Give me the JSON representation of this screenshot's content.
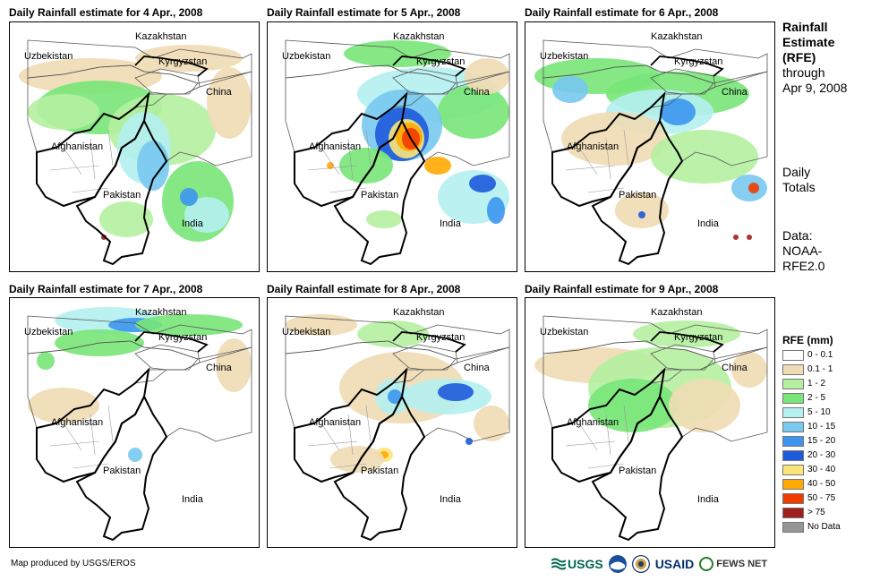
{
  "panels": [
    {
      "title": "Daily Rainfall estimate for 4 Apr., 2008"
    },
    {
      "title": "Daily Rainfall estimate for 5 Apr., 2008"
    },
    {
      "title": "Daily Rainfall estimate for 6 Apr., 2008"
    },
    {
      "title": "Daily Rainfall estimate for 7 Apr., 2008"
    },
    {
      "title": "Daily Rainfall estimate for 8 Apr., 2008"
    },
    {
      "title": "Daily Rainfall estimate for 9 Apr., 2008"
    }
  ],
  "map_labels": {
    "kazakhstan": "Kazakhstan",
    "uzbekistan": "Uzbekistan",
    "kyrgyzstan": "Kyrgyzstan",
    "china": "China",
    "afghanistan": "Afghanistan",
    "pakistan": "Pakistan",
    "india": "India"
  },
  "side": {
    "title_line1": "Rainfall",
    "title_line2": "Estimate",
    "title_line3": "(RFE)",
    "through": "through",
    "date": "Apr 9, 2008",
    "daily1": "Daily",
    "daily2": "Totals",
    "data1": "Data:",
    "data2": "NOAA-",
    "data3": "RFE2.0"
  },
  "legend": {
    "title": "RFE (mm)",
    "items": [
      {
        "label": "0 - 0.1",
        "color": "#ffffff"
      },
      {
        "label": "0.1 - 1",
        "color": "#f0dcb4"
      },
      {
        "label": "1 - 2",
        "color": "#b4f0a0"
      },
      {
        "label": "2 - 5",
        "color": "#78e678"
      },
      {
        "label": "5 - 10",
        "color": "#b4f0f0"
      },
      {
        "label": "10 - 15",
        "color": "#78c8f0"
      },
      {
        "label": "15 - 20",
        "color": "#3c96f0"
      },
      {
        "label": "20 - 30",
        "color": "#1e5adc"
      },
      {
        "label": "30 - 40",
        "color": "#fae678"
      },
      {
        "label": "40 - 50",
        "color": "#ffaa00"
      },
      {
        "label": "50 - 75",
        "color": "#f03c00"
      },
      {
        "label": "> 75",
        "color": "#a01e1e"
      },
      {
        "label": "No Data",
        "color": "#969696"
      }
    ]
  },
  "credit": "Map produced by USGS/EROS",
  "logos": {
    "usgs": "USGS",
    "usaid": "USAID",
    "fews": "FEWS NET"
  }
}
